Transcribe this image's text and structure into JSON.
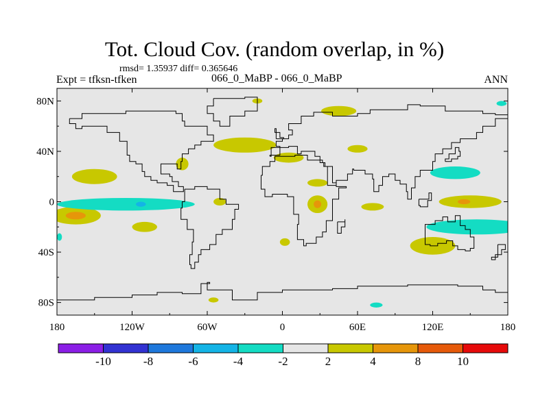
{
  "title": "Tot. Cloud Cov. (random overlap, in %)",
  "stats_line": "rmsd= 1.35937 diff= 0.365646",
  "expt_label": "Expt = tfksn-tfken",
  "case_label": "066_0_MaBP - 066_0_MaBP",
  "season": "ANN",
  "colors": {
    "background_field": "#e6e6e6",
    "coastline": "#000000"
  },
  "chart_data": {
    "type": "heatmap",
    "title": "Tot. Cloud Cov. (random overlap, in %)",
    "xlabel": "",
    "ylabel": "",
    "xlim": [
      -180,
      180
    ],
    "ylim": [
      -90,
      90
    ],
    "x_ticks": [
      {
        "value": -180,
        "label": "180"
      },
      {
        "value": -120,
        "label": "120W"
      },
      {
        "value": -60,
        "label": "60W"
      },
      {
        "value": 0,
        "label": "0"
      },
      {
        "value": 60,
        "label": "60E"
      },
      {
        "value": 120,
        "label": "120E"
      },
      {
        "value": 180,
        "label": "180"
      }
    ],
    "y_ticks": [
      {
        "value": 80,
        "label": "80N"
      },
      {
        "value": 40,
        "label": "40N"
      },
      {
        "value": 0,
        "label": "0"
      },
      {
        "value": -40,
        "label": "40S"
      },
      {
        "value": -80,
        "label": "80S"
      }
    ],
    "contour_levels": [
      -10,
      -8,
      -6,
      -4,
      -2,
      2,
      4,
      8,
      10
    ],
    "colorbar": [
      {
        "color": "#8b1ee6"
      },
      {
        "color": "#3232d2"
      },
      {
        "color": "#1e78dc"
      },
      {
        "color": "#14b4e6"
      },
      {
        "color": "#14dcc3"
      },
      {
        "color": "#e6e6e6"
      },
      {
        "color": "#c8c800"
      },
      {
        "color": "#e6960a"
      },
      {
        "color": "#e65a0a"
      },
      {
        "color": "#e60a0a"
      }
    ],
    "colorbar_labels": [
      {
        "value": -10,
        "label": "-10"
      },
      {
        "value": -8,
        "label": "-8"
      },
      {
        "value": -6,
        "label": "-6"
      },
      {
        "value": -4,
        "label": "-4"
      },
      {
        "value": -2,
        "label": "-2"
      },
      {
        "value": 2,
        "label": "2"
      },
      {
        "value": 4,
        "label": "4"
      },
      {
        "value": 8,
        "label": "8"
      },
      {
        "value": 10,
        "label": "10"
      }
    ],
    "anomaly_regions": [
      {
        "name": "n-pacific-subtropics",
        "lon": -150,
        "lat": 20,
        "rlon": 18,
        "rlat": 6,
        "level": "2-4"
      },
      {
        "name": "w-pacific-south",
        "lon": -165,
        "lat": -11,
        "rlon": 20,
        "rlat": 7,
        "level": "2-4"
      },
      {
        "name": "w-pacific-south-core",
        "lon": -165,
        "lat": -11,
        "rlon": 8,
        "rlat": 3,
        "level": "4-8"
      },
      {
        "name": "equatorial-pacific",
        "lon": -125,
        "lat": -2,
        "rlon": 55,
        "rlat": 5,
        "level": "-4--2"
      },
      {
        "name": "pacific-east-small",
        "lon": -113,
        "lat": -2,
        "rlon": 4,
        "rlat": 2,
        "level": "-6--4"
      },
      {
        "name": "s-pacific-mid",
        "lon": -110,
        "lat": -20,
        "rlon": 10,
        "rlat": 4,
        "level": "2-4"
      },
      {
        "name": "sw-pacific-edge",
        "lon": -178,
        "lat": -28,
        "rlon": 2,
        "rlat": 3,
        "level": "-4--2"
      },
      {
        "name": "north-america-west",
        "lon": -80,
        "lat": 30,
        "rlon": 5,
        "rlat": 5,
        "level": "2-4"
      },
      {
        "name": "n-atlantic",
        "lon": -30,
        "lat": 45,
        "rlon": 25,
        "rlat": 6,
        "level": "2-4"
      },
      {
        "name": "europe",
        "lon": 5,
        "lat": 35,
        "rlon": 12,
        "rlat": 4,
        "level": "2-4"
      },
      {
        "name": "arctic-asia",
        "lon": 45,
        "lat": 72,
        "rlon": 14,
        "rlat": 4,
        "level": "2-4"
      },
      {
        "name": "central-asia",
        "lon": 60,
        "lat": 42,
        "rlon": 8,
        "rlat": 3,
        "level": "2-4"
      },
      {
        "name": "tropical-atlantic",
        "lon": -50,
        "lat": 0,
        "rlon": 5,
        "rlat": 3,
        "level": "2-4"
      },
      {
        "name": "north-africa",
        "lon": 28,
        "lat": 15,
        "rlon": 8,
        "rlat": 3,
        "level": "2-4"
      },
      {
        "name": "central-africa",
        "lon": 28,
        "lat": -2,
        "rlon": 8,
        "rlat": 7,
        "level": "2-4"
      },
      {
        "name": "central-africa-core",
        "lon": 28,
        "lat": -2,
        "rlon": 3,
        "rlat": 3,
        "level": "4-8"
      },
      {
        "name": "indian-ocean-west",
        "lon": 72,
        "lat": -4,
        "rlon": 9,
        "rlat": 3,
        "level": "2-4"
      },
      {
        "name": "indian-ocean-south",
        "lon": 120,
        "lat": -35,
        "rlon": 18,
        "rlat": 7,
        "level": "2-4"
      },
      {
        "name": "s-atlantic-small",
        "lon": 2,
        "lat": -32,
        "rlon": 4,
        "rlat": 3,
        "level": "2-4"
      },
      {
        "name": "w-pacific-north",
        "lon": 150,
        "lat": 0,
        "rlon": 25,
        "rlat": 5,
        "level": "2-4"
      },
      {
        "name": "w-pacific-north-core",
        "lon": 145,
        "lat": 0,
        "rlon": 5,
        "rlat": 2,
        "level": "4-8"
      },
      {
        "name": "n-pacific-west",
        "lon": 138,
        "lat": 23,
        "rlon": 20,
        "rlat": 5,
        "level": "-4--2"
      },
      {
        "name": "south-pacific-conv",
        "lon": 155,
        "lat": -20,
        "rlon": 40,
        "rlat": 6,
        "level": "-4--2"
      },
      {
        "name": "arctic-east",
        "lon": 175,
        "lat": 78,
        "rlon": 4,
        "rlat": 2,
        "level": "-4--2"
      },
      {
        "name": "antarctic-ocean-1",
        "lon": -55,
        "lat": -78,
        "rlon": 4,
        "rlat": 2,
        "level": "2-4"
      },
      {
        "name": "antarctic-ocean-2",
        "lon": 75,
        "lat": -82,
        "rlon": 5,
        "rlat": 2,
        "level": "-4--2"
      },
      {
        "name": "arctic-greenland",
        "lon": -20,
        "lat": 80,
        "rlon": 4,
        "rlat": 2,
        "level": "2-4"
      }
    ]
  }
}
